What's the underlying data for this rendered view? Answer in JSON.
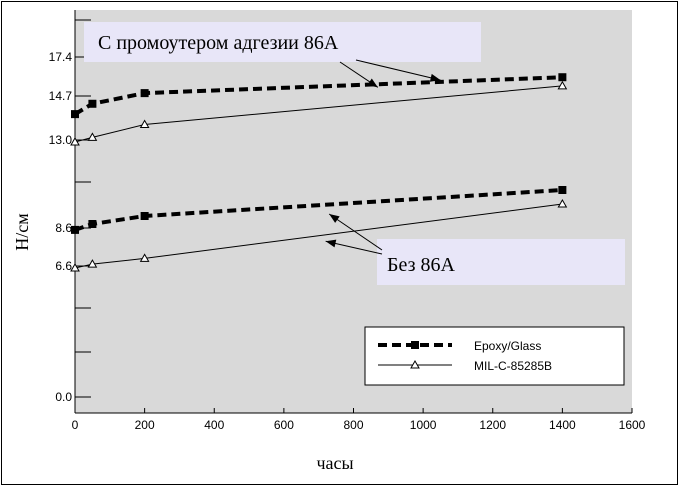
{
  "chart_data": {
    "type": "line",
    "xlabel": "часы",
    "ylabel": "Н/см",
    "xlim": [
      0,
      1600
    ],
    "x_ticks": [
      0,
      200,
      400,
      600,
      800,
      1000,
      1200,
      1400,
      1600
    ],
    "y_ticks": [
      17.4,
      14.7,
      13.0,
      8.6,
      6.6,
      0.0
    ],
    "y_tick_labels": [
      "17.4",
      "14.7",
      "13.0",
      "8.6",
      "6.6",
      "0.0"
    ],
    "background": "#d9d9d9",
    "legend_position": "lower-right",
    "series": [
      {
        "name": "Epoxy/Glass",
        "style": "dashed",
        "marker": "square",
        "x": [
          0,
          50,
          200,
          1400
        ],
        "y": [
          14.0,
          14.4,
          14.9,
          16.0
        ]
      },
      {
        "name": "MIL-C-85285B",
        "style": "solid",
        "marker": "triangle",
        "x": [
          0,
          50,
          200,
          1400
        ],
        "y": [
          12.9,
          13.1,
          13.6,
          15.4
        ]
      },
      {
        "name": "Epoxy/Glass",
        "style": "dashed",
        "marker": "square",
        "x": [
          0,
          50,
          200,
          1400
        ],
        "y": [
          8.5,
          8.8,
          9.2,
          10.5
        ]
      },
      {
        "name": "MIL-C-85285B",
        "style": "solid",
        "marker": "triangle",
        "x": [
          0,
          50,
          200,
          1400
        ],
        "y": [
          6.5,
          6.7,
          7.0,
          9.8
        ]
      }
    ],
    "legend": [
      {
        "label": "Epoxy/Glass",
        "style": "dashed",
        "marker": "square"
      },
      {
        "label": "MIL-C-85285B",
        "style": "solid",
        "marker": "triangle"
      }
    ],
    "annotations": [
      {
        "text": "С промоутером адгезии 86А",
        "targets": [
          [
            870,
            15.3
          ],
          [
            1050,
            15.8
          ]
        ]
      },
      {
        "text": "Без 86А",
        "targets": [
          [
            730,
            9.3
          ],
          [
            720,
            7.9
          ]
        ]
      }
    ]
  }
}
